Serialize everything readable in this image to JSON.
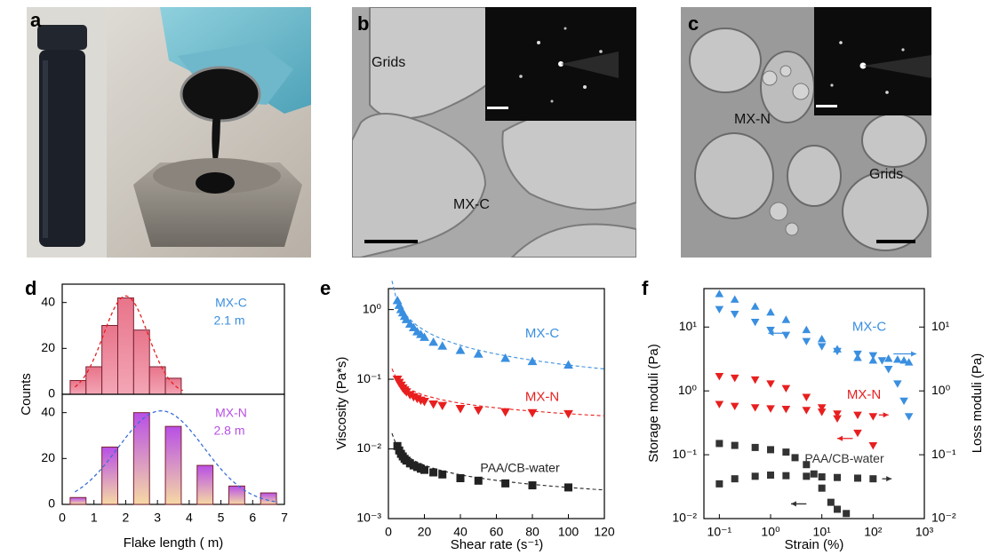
{
  "panels": {
    "a": {
      "label": "a"
    },
    "b": {
      "label": "b",
      "grids": "Grids",
      "material": "MX-C"
    },
    "c": {
      "label": "c",
      "material": "MX-N",
      "grids": "Grids"
    },
    "d": {
      "label": "d"
    },
    "e": {
      "label": "e"
    },
    "f": {
      "label": "f"
    }
  },
  "colors": {
    "mxc": "#3a8fe0",
    "mxn": "#e81f1f",
    "paa": "#333333",
    "bar_top_pink": "#e8748a",
    "bar_top_purple": "#b84fe6",
    "bar_bottom_yellow": "#f6d9a4"
  },
  "chart_data": [
    {
      "type": "bar",
      "panel": "d-top",
      "series_label": "MX-C",
      "mean_label": "2.1   m",
      "ylabel": "Counts",
      "x": [
        0.5,
        1,
        1.5,
        2,
        2.5,
        3,
        3.5
      ],
      "values": [
        6,
        12,
        30,
        42,
        28,
        12,
        7
      ],
      "ylim": [
        0,
        48
      ],
      "yticks": [
        "0",
        "20",
        "40"
      ],
      "fit": "gaussian",
      "fit_color": "#e81f1f"
    },
    {
      "type": "bar",
      "panel": "d-bottom",
      "series_label": "MX-N",
      "mean_label": "2.8   m",
      "x": [
        0.5,
        1.5,
        2.5,
        3.5,
        4.5,
        5.5,
        6.5
      ],
      "values": [
        3,
        25,
        40,
        34,
        17,
        8,
        5
      ],
      "ylim": [
        0,
        48
      ],
      "yticks": [
        "0",
        "20",
        "40"
      ],
      "xlabel": "Flake length (  m)",
      "xticks": [
        "0",
        "1",
        "2",
        "3",
        "4",
        "5",
        "6",
        "7"
      ],
      "fit": "gaussian",
      "fit_color": "#3a6fd8"
    },
    {
      "type": "scatter",
      "panel": "e",
      "xlabel": "Shear rate (s⁻¹)",
      "ylabel": "Viscosity (Pa*s)",
      "xlim": [
        0,
        120
      ],
      "ylim": [
        0.001,
        2
      ],
      "yscale": "log",
      "xticks": [
        "0",
        "20",
        "40",
        "60",
        "80",
        "100",
        "120"
      ],
      "yticks": [
        "10⁻³",
        "10⁻²",
        "10⁻¹",
        "10⁰"
      ],
      "series": [
        {
          "name": "MX-C",
          "marker": "triangle-up",
          "x": [
            5,
            6,
            7,
            8,
            9,
            10,
            12,
            14,
            16,
            18,
            20,
            25,
            30,
            40,
            50,
            65,
            80,
            100
          ],
          "y": [
            1.35,
            1.15,
            1.0,
            0.9,
            0.8,
            0.72,
            0.62,
            0.55,
            0.48,
            0.44,
            0.4,
            0.34,
            0.3,
            0.26,
            0.23,
            0.2,
            0.18,
            0.16
          ]
        },
        {
          "name": "MX-N",
          "marker": "triangle-down",
          "x": [
            5,
            6,
            7,
            8,
            9,
            10,
            12,
            14,
            16,
            18,
            20,
            25,
            30,
            40,
            50,
            65,
            80,
            100
          ],
          "y": [
            0.1,
            0.09,
            0.082,
            0.075,
            0.07,
            0.066,
            0.06,
            0.056,
            0.053,
            0.05,
            0.048,
            0.044,
            0.042,
            0.038,
            0.036,
            0.034,
            0.033,
            0.032
          ]
        },
        {
          "name": "PAA/CB-water",
          "marker": "square",
          "x": [
            5,
            6,
            7,
            8,
            9,
            10,
            12,
            14,
            16,
            18,
            20,
            25,
            30,
            40,
            50,
            65,
            80,
            100
          ],
          "y": [
            0.011,
            0.0095,
            0.0085,
            0.0078,
            0.0072,
            0.0068,
            0.0062,
            0.0058,
            0.0055,
            0.0052,
            0.005,
            0.0046,
            0.0043,
            0.0038,
            0.0035,
            0.0032,
            0.003,
            0.0028
          ]
        }
      ]
    },
    {
      "type": "scatter",
      "panel": "f",
      "xlabel": "Strain (%)",
      "ylabel": "Storage moduli (Pa)",
      "ylabel_right": "Loss moduli (Pa)",
      "xscale": "log",
      "yscale": "log",
      "xlim": [
        0.05,
        1000
      ],
      "ylim": [
        0.01,
        40
      ],
      "xticks": [
        "10⁻¹",
        "10⁰",
        "10¹",
        "10²",
        "10³"
      ],
      "yticks": [
        "10⁻²",
        "10⁻¹",
        "10⁰",
        "10¹"
      ],
      "yticks_right": [
        "10⁻²",
        "10⁻¹",
        "10⁰",
        "10¹"
      ],
      "series": [
        {
          "name": "MX-C",
          "kind": "storage",
          "marker": "triangle-up",
          "x": [
            0.1,
            0.2,
            0.5,
            1,
            2,
            5,
            10,
            20,
            50,
            100,
            200,
            300,
            400,
            500
          ],
          "y": [
            33,
            27,
            21,
            17,
            13,
            9,
            6.5,
            4.5,
            3.3,
            3.0,
            3.2,
            3.1,
            3.0,
            2.8
          ]
        },
        {
          "name": "MX-C",
          "kind": "loss",
          "marker": "triangle-down",
          "x": [
            0.1,
            0.2,
            0.5,
            1,
            2,
            5,
            10,
            20,
            50,
            100,
            150,
            200,
            300,
            400,
            500
          ],
          "y": [
            19,
            16,
            12,
            9,
            7.5,
            6,
            5,
            4.2,
            3.8,
            3.6,
            3.0,
            2.2,
            1.3,
            0.7,
            0.4
          ]
        },
        {
          "name": "MX-N",
          "kind": "storage",
          "marker": "triangle-down",
          "x": [
            0.1,
            0.2,
            0.5,
            1,
            2,
            5,
            10,
            20,
            50,
            100
          ],
          "y": [
            1.7,
            1.6,
            1.5,
            1.3,
            1.1,
            0.8,
            0.55,
            0.37,
            0.22,
            0.14
          ]
        },
        {
          "name": "MX-N",
          "kind": "loss",
          "marker": "triangle-down",
          "x": [
            0.1,
            0.2,
            0.5,
            1,
            2,
            5,
            10,
            20,
            50,
            100
          ],
          "y": [
            0.62,
            0.58,
            0.55,
            0.53,
            0.52,
            0.5,
            0.47,
            0.44,
            0.42,
            0.4
          ]
        },
        {
          "name": "PAA/CB-water",
          "kind": "storage",
          "marker": "square",
          "x": [
            0.1,
            0.2,
            0.5,
            1,
            2,
            3,
            5,
            7,
            10,
            15,
            20,
            30
          ],
          "y": [
            0.15,
            0.14,
            0.13,
            0.12,
            0.11,
            0.09,
            0.07,
            0.05,
            0.03,
            0.018,
            0.014,
            0.012
          ]
        },
        {
          "name": "PAA/CB-water",
          "kind": "loss",
          "marker": "square",
          "x": [
            0.1,
            0.2,
            0.5,
            1,
            2,
            5,
            10,
            20,
            50,
            100
          ],
          "y": [
            0.035,
            0.042,
            0.046,
            0.048,
            0.047,
            0.046,
            0.045,
            0.044,
            0.043,
            0.042
          ]
        }
      ]
    }
  ]
}
